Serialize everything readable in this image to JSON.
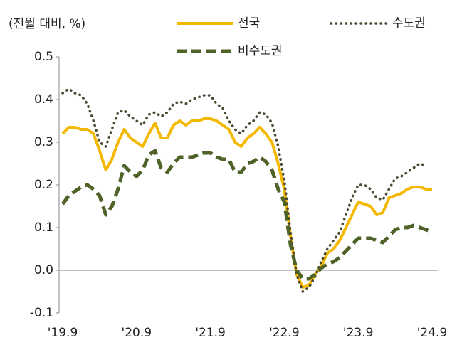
{
  "chart_data": {
    "type": "line",
    "y_label": "(전월 대비, %)",
    "categories": [
      "'19.9",
      null,
      null,
      null,
      null,
      null,
      null,
      null,
      null,
      null,
      null,
      null,
      "'20.9",
      null,
      null,
      null,
      null,
      null,
      null,
      null,
      null,
      null,
      null,
      null,
      "'21.9",
      null,
      null,
      null,
      null,
      null,
      null,
      null,
      null,
      null,
      null,
      null,
      "'22.9",
      null,
      null,
      null,
      null,
      null,
      null,
      null,
      null,
      null,
      null,
      null,
      "'23.9",
      null,
      null,
      null,
      null,
      null,
      null,
      null,
      null,
      null,
      null,
      null,
      "'24.9"
    ],
    "series": [
      {
        "name": "전국",
        "color": "#f5b800",
        "style": "solid",
        "values": [
          0.32,
          0.335,
          0.335,
          0.33,
          0.33,
          0.32,
          0.28,
          0.235,
          0.26,
          0.3,
          0.33,
          0.31,
          0.3,
          0.29,
          0.32,
          0.345,
          0.31,
          0.31,
          0.34,
          0.35,
          0.34,
          0.35,
          0.35,
          0.355,
          0.355,
          0.35,
          0.34,
          0.33,
          0.3,
          0.29,
          0.31,
          0.32,
          0.335,
          0.32,
          0.3,
          0.25,
          0.19,
          0.08,
          -0.01,
          -0.04,
          -0.035,
          -0.01,
          0.01,
          0.04,
          0.05,
          0.07,
          0.1,
          0.13,
          0.16,
          0.155,
          0.15,
          0.13,
          0.135,
          0.17,
          0.175,
          0.18,
          0.19,
          0.195,
          0.195,
          0.19,
          0.19
        ]
      },
      {
        "name": "수도권",
        "color": "#4a4a32",
        "style": "dotted",
        "values": [
          0.415,
          0.425,
          0.415,
          0.41,
          0.39,
          0.35,
          0.3,
          0.29,
          0.33,
          0.37,
          0.375,
          0.36,
          0.35,
          0.34,
          0.365,
          0.37,
          0.36,
          0.37,
          0.39,
          0.395,
          0.39,
          0.4,
          0.405,
          0.41,
          0.41,
          0.39,
          0.38,
          0.35,
          0.33,
          0.32,
          0.34,
          0.35,
          0.37,
          0.365,
          0.345,
          0.29,
          0.21,
          0.09,
          -0.01,
          -0.05,
          -0.04,
          -0.015,
          0.02,
          0.05,
          0.07,
          0.09,
          0.13,
          0.17,
          0.2,
          0.2,
          0.19,
          0.17,
          0.165,
          0.19,
          0.215,
          0.22,
          0.23,
          0.24,
          0.25,
          0.245,
          null
        ]
      },
      {
        "name": "비수도권",
        "color": "#4f6228",
        "style": "dashed",
        "values": [
          0.155,
          0.175,
          0.185,
          0.195,
          0.2,
          0.19,
          0.175,
          0.13,
          0.15,
          0.19,
          0.245,
          0.23,
          0.22,
          0.235,
          0.27,
          0.28,
          0.24,
          0.23,
          0.25,
          0.265,
          0.265,
          0.265,
          0.27,
          0.275,
          0.275,
          0.265,
          0.26,
          0.26,
          0.23,
          0.23,
          0.25,
          0.255,
          0.265,
          0.255,
          0.235,
          0.19,
          0.16,
          0.06,
          0.0,
          -0.02,
          -0.02,
          -0.01,
          0.005,
          0.015,
          0.02,
          0.03,
          0.045,
          0.06,
          0.075,
          0.075,
          0.075,
          0.07,
          0.065,
          0.08,
          0.095,
          0.1,
          0.1,
          0.105,
          0.1,
          0.095,
          0.09
        ]
      }
    ],
    "ylim": [
      -0.1,
      0.5
    ],
    "yticks": [
      -0.1,
      {
        "value": 0,
        "label": "0.0"
      },
      0.1,
      0.2,
      0.3,
      0.4,
      0.5
    ],
    "grid": false
  }
}
